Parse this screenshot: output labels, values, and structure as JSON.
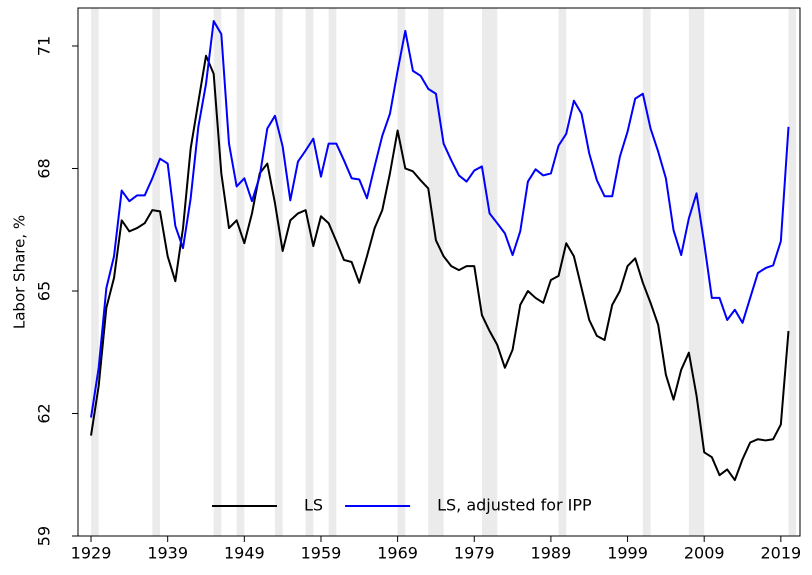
{
  "chart_data": {
    "type": "line",
    "y_label": "Labor Share, %",
    "x": [
      1929,
      1930,
      1931,
      1932,
      1933,
      1934,
      1935,
      1936,
      1937,
      1938,
      1939,
      1940,
      1941,
      1942,
      1943,
      1944,
      1945,
      1946,
      1947,
      1948,
      1949,
      1950,
      1951,
      1952,
      1953,
      1954,
      1955,
      1956,
      1957,
      1958,
      1959,
      1960,
      1961,
      1962,
      1963,
      1964,
      1965,
      1966,
      1967,
      1968,
      1969,
      1970,
      1971,
      1972,
      1973,
      1974,
      1975,
      1976,
      1977,
      1978,
      1979,
      1980,
      1981,
      1982,
      1983,
      1984,
      1985,
      1986,
      1987,
      1988,
      1989,
      1990,
      1991,
      1992,
      1993,
      1994,
      1995,
      1996,
      1997,
      1998,
      1999,
      2000,
      2001,
      2002,
      2003,
      2004,
      2005,
      2006,
      2007,
      2008,
      2009,
      2010,
      2011,
      2012,
      2013,
      2014,
      2015,
      2016,
      2017,
      2018,
      2019,
      2020
    ],
    "series": [
      {
        "name": "LS",
        "color": "#000000",
        "values": [
          61.46,
          62.68,
          64.59,
          65.32,
          66.73,
          66.46,
          66.54,
          66.66,
          66.98,
          66.95,
          65.85,
          65.24,
          66.54,
          68.49,
          69.63,
          70.76,
          70.32,
          67.88,
          66.54,
          66.73,
          66.17,
          66.9,
          67.88,
          68.12,
          67.15,
          65.98,
          66.73,
          66.9,
          66.98,
          66.1,
          66.83,
          66.66,
          66.22,
          65.76,
          65.71,
          65.2,
          65.85,
          66.54,
          66.98,
          67.88,
          68.93,
          68.0,
          67.93,
          67.71,
          67.51,
          66.24,
          65.85,
          65.61,
          65.51,
          65.61,
          65.61,
          64.41,
          64.02,
          63.68,
          63.12,
          63.56,
          64.66,
          65.0,
          64.83,
          64.71,
          65.27,
          65.37,
          66.17,
          65.85,
          65.07,
          64.29,
          63.9,
          63.8,
          64.66,
          65.0,
          65.61,
          65.8,
          65.2,
          64.71,
          64.17,
          62.95,
          62.34,
          63.07,
          63.49,
          62.44,
          61.05,
          60.93,
          60.49,
          60.63,
          60.37,
          60.88,
          61.29,
          61.37,
          61.34,
          61.37,
          61.73,
          64.02
        ]
      },
      {
        "name": "LS, adjusted for IPP",
        "color": "#0000ff",
        "values": [
          61.9,
          63.12,
          65.07,
          65.85,
          67.46,
          67.2,
          67.34,
          67.34,
          67.76,
          68.24,
          68.12,
          66.59,
          66.05,
          67.27,
          69.02,
          70.07,
          71.61,
          71.29,
          68.61,
          67.56,
          67.76,
          67.2,
          67.8,
          68.98,
          69.29,
          68.54,
          67.22,
          68.17,
          68.44,
          68.73,
          67.8,
          68.61,
          68.61,
          68.2,
          67.76,
          67.73,
          67.27,
          68.05,
          68.8,
          69.34,
          70.39,
          71.37,
          70.39,
          70.27,
          69.95,
          69.83,
          68.61,
          68.2,
          67.83,
          67.68,
          67.95,
          68.05,
          66.9,
          66.66,
          66.41,
          65.88,
          66.46,
          67.68,
          67.98,
          67.83,
          67.88,
          68.56,
          68.85,
          69.66,
          69.34,
          68.37,
          67.71,
          67.32,
          67.32,
          68.29,
          68.9,
          69.71,
          69.83,
          68.98,
          68.41,
          67.76,
          66.49,
          65.88,
          66.78,
          67.39,
          66.17,
          64.83,
          64.83,
          64.29,
          64.54,
          64.22,
          64.83,
          65.44,
          65.56,
          65.63,
          66.22,
          69.02
        ]
      }
    ],
    "shaded_periods": [
      [
        1929,
        1930
      ],
      [
        1937,
        1938
      ],
      [
        1945,
        1946
      ],
      [
        1948,
        1949
      ],
      [
        1953,
        1954
      ],
      [
        1957,
        1958
      ],
      [
        1960,
        1961
      ],
      [
        1969,
        1970
      ],
      [
        1973,
        1975
      ],
      [
        1980,
        1982
      ],
      [
        1990,
        1991
      ],
      [
        2001,
        2002
      ],
      [
        2007,
        2009
      ],
      [
        2020,
        2021
      ]
    ],
    "shade_color": "#ebebeb",
    "xlim": [
      1927.3,
      2021.5
    ],
    "ylim": [
      59,
      71.93
    ],
    "xticks": [
      1929,
      1939,
      1949,
      1959,
      1969,
      1979,
      1989,
      1999,
      2009,
      2019
    ],
    "yticks": [
      59,
      62,
      65,
      68,
      71
    ],
    "legend": "lower center"
  }
}
